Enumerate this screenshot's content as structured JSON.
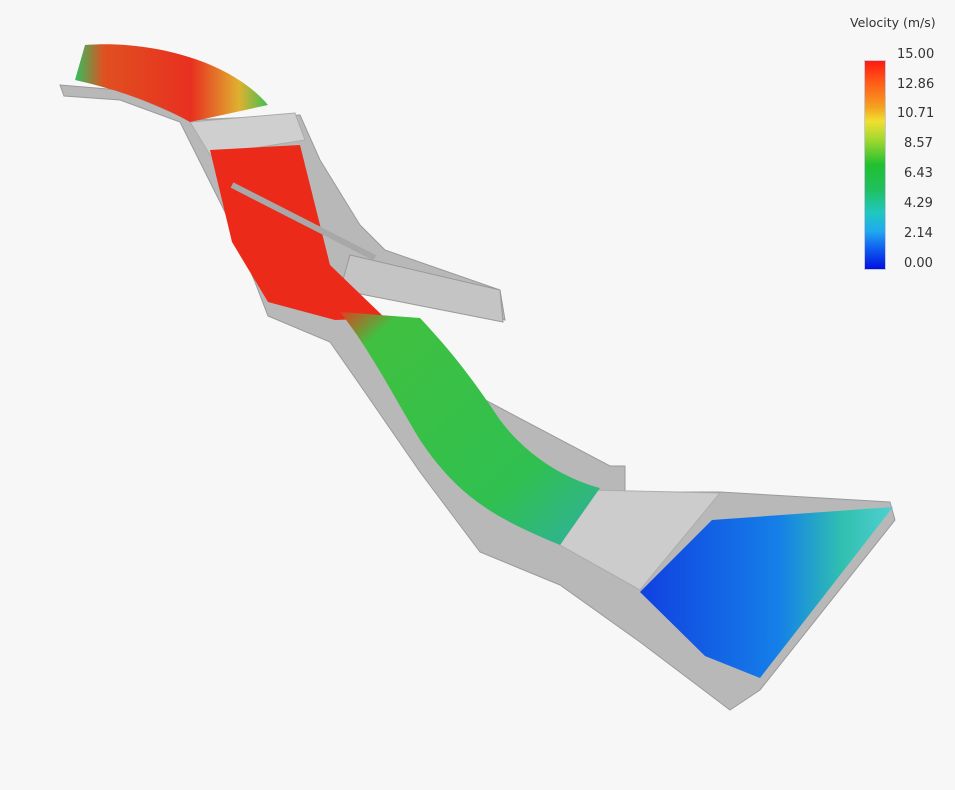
{
  "legend": {
    "title": "Velocity (m/s)",
    "ticks": [
      "15.00",
      "12.86",
      "10.71",
      "8.57",
      "6.43",
      "4.29",
      "2.14",
      "0.00"
    ],
    "range": [
      0,
      15
    ],
    "colormap": [
      "#0010e0",
      "#20a8f0",
      "#20c8c0",
      "#20c030",
      "#f0e030",
      "#f5a020",
      "#ff1a10"
    ]
  }
}
